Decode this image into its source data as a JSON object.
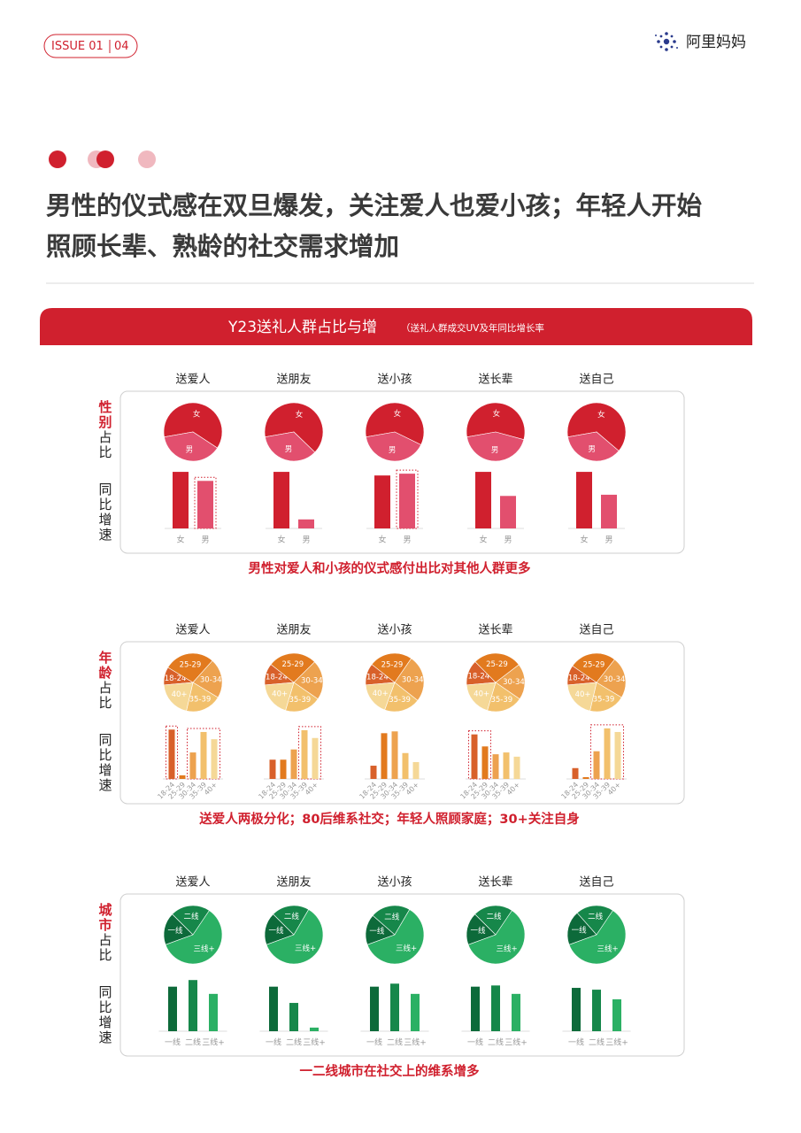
{
  "header": {
    "issue": "ISSUE 01",
    "page": "04",
    "brand": "阿里妈妈"
  },
  "headline": [
    "男性的仪式感在双旦爆发，关注爱人也爱小孩；年轻人开始",
    "照顾长辈、熟龄的社交需求增加"
  ],
  "banner": {
    "title": "Y23送礼人群占比与增",
    "note": "（送礼人群成交UV及年同比增长率"
  },
  "sections": [
    {
      "label": "性别",
      "share": "占比",
      "growth": "同比增速",
      "columns": [
        "送爱人",
        "送朋友",
        "送小孩",
        "送长辈",
        "送自己"
      ],
      "conclusion": "男性对爱人和小孩的仪式感付出比对其他人群更多"
    },
    {
      "label": "年龄",
      "share": "占比",
      "growth": "同比增速",
      "columns": [
        "送爱人",
        "送朋友",
        "送小孩",
        "送长辈",
        "送自己"
      ],
      "conclusion": "送爱人两极分化；80后维系社交；年轻人照顾家庭；30+关注自身"
    },
    {
      "label": "城市",
      "share": "占比",
      "growth": "同比增速",
      "columns": [
        "送爱人",
        "送朋友",
        "送小孩",
        "送长辈",
        "送自己"
      ],
      "conclusion": "一二线城市在社交上的维系增多"
    }
  ],
  "chart_data": [
    {
      "type": "pie",
      "categories": [
        "女",
        "男"
      ],
      "values": [
        62,
        38
      ],
      "colors": [
        "#d0202e",
        "#e24f6e"
      ]
    },
    {
      "type": "bar",
      "categories": [
        "女",
        "男"
      ],
      "values": [
        94,
        79
      ],
      "colors": [
        "#d0202e",
        "#e24f6e"
      ],
      "ylim": [
        0,
        100
      ],
      "highlight": [
        [
          1,
          1
        ]
      ]
    },
    {
      "type": "pie",
      "categories": [
        "女",
        "男"
      ],
      "values": [
        65,
        35
      ],
      "colors": [
        "#d0202e",
        "#e24f6e"
      ]
    },
    {
      "type": "bar",
      "categories": [
        "女",
        "男"
      ],
      "values": [
        94,
        15
      ],
      "colors": [
        "#d0202e",
        "#e24f6e"
      ],
      "ylim": [
        0,
        100
      ],
      "highlight": []
    },
    {
      "type": "pie",
      "categories": [
        "女",
        "男"
      ],
      "values": [
        60,
        40
      ],
      "colors": [
        "#d0202e",
        "#e24f6e"
      ]
    },
    {
      "type": "bar",
      "categories": [
        "女",
        "男"
      ],
      "values": [
        88,
        91
      ],
      "colors": [
        "#d0202e",
        "#e24f6e"
      ],
      "ylim": [
        0,
        100
      ],
      "highlight": [
        [
          1,
          1
        ]
      ]
    },
    {
      "type": "pie",
      "categories": [
        "女",
        "男"
      ],
      "values": [
        57,
        43
      ],
      "colors": [
        "#d0202e",
        "#e24f6e"
      ]
    },
    {
      "type": "bar",
      "categories": [
        "女",
        "男"
      ],
      "values": [
        94,
        54
      ],
      "colors": [
        "#d0202e",
        "#e24f6e"
      ],
      "ylim": [
        0,
        100
      ],
      "highlight": []
    },
    {
      "type": "pie",
      "categories": [
        "女",
        "男"
      ],
      "values": [
        64,
        36
      ],
      "colors": [
        "#d0202e",
        "#e24f6e"
      ]
    },
    {
      "type": "bar",
      "categories": [
        "女",
        "男"
      ],
      "values": [
        94,
        56
      ],
      "colors": [
        "#d0202e",
        "#e24f6e"
      ],
      "ylim": [
        0,
        100
      ],
      "highlight": []
    },
    {
      "type": "pie",
      "categories": [
        "18-24",
        "25-29",
        "30-34",
        "35-39",
        "40+"
      ],
      "values": [
        10,
        28,
        22,
        20,
        20
      ],
      "colors": [
        "#d8602a",
        "#e27a1e",
        "#eda24f",
        "#f2c06c",
        "#f5d897"
      ]
    },
    {
      "type": "bar",
      "categories": [
        "18-24",
        "25-29",
        "30-34",
        "35-39",
        "40+"
      ],
      "values": [
        82,
        6,
        44,
        78,
        66
      ],
      "colors": [
        "#d8602a",
        "#e27a1e",
        "#eda24f",
        "#f2c06c",
        "#f5d897"
      ],
      "ylim": [
        0,
        100
      ],
      "highlight": [
        [
          0,
          0
        ],
        [
          2,
          4
        ]
      ]
    },
    {
      "type": "pie",
      "categories": [
        "18-24",
        "25-29",
        "30-34",
        "35-39",
        "40+"
      ],
      "values": [
        12,
        27,
        22,
        20,
        19
      ],
      "colors": [
        "#d8602a",
        "#e27a1e",
        "#eda24f",
        "#f2c06c",
        "#f5d897"
      ]
    },
    {
      "type": "bar",
      "categories": [
        "18-24",
        "25-29",
        "30-34",
        "35-39",
        "40+"
      ],
      "values": [
        32,
        32,
        49,
        81,
        68
      ],
      "colors": [
        "#d8602a",
        "#e27a1e",
        "#eda24f",
        "#f2c06c",
        "#f5d897"
      ],
      "ylim": [
        0,
        100
      ],
      "highlight": [
        [
          3,
          4
        ]
      ]
    },
    {
      "type": "pie",
      "categories": [
        "18-24",
        "25-29",
        "30-34",
        "35-39",
        "40+"
      ],
      "values": [
        12,
        24,
        26,
        20,
        18
      ],
      "colors": [
        "#d8602a",
        "#e27a1e",
        "#eda24f",
        "#f2c06c",
        "#f5d897"
      ]
    },
    {
      "type": "bar",
      "categories": [
        "18-24",
        "25-29",
        "30-34",
        "35-39",
        "40+"
      ],
      "values": [
        22,
        76,
        79,
        43,
        28
      ],
      "colors": [
        "#d8602a",
        "#e27a1e",
        "#eda24f",
        "#f2c06c",
        "#f5d897"
      ],
      "ylim": [
        0,
        100
      ],
      "highlight": []
    },
    {
      "type": "pie",
      "categories": [
        "18-24",
        "25-29",
        "30-34",
        "35-39",
        "40+"
      ],
      "values": [
        14,
        27,
        20,
        20,
        19
      ],
      "colors": [
        "#d8602a",
        "#e27a1e",
        "#eda24f",
        "#f2c06c",
        "#f5d897"
      ]
    },
    {
      "type": "bar",
      "categories": [
        "18-24",
        "25-29",
        "30-34",
        "35-39",
        "40+"
      ],
      "values": [
        74,
        54,
        41,
        44,
        37
      ],
      "colors": [
        "#d8602a",
        "#e27a1e",
        "#eda24f",
        "#f2c06c",
        "#f5d897"
      ],
      "ylim": [
        0,
        100
      ],
      "highlight": [
        [
          0,
          1
        ]
      ]
    },
    {
      "type": "pie",
      "categories": [
        "18-24",
        "25-29",
        "30-34",
        "35-39",
        "40+"
      ],
      "values": [
        11,
        26,
        23,
        20,
        20
      ],
      "colors": [
        "#d8602a",
        "#e27a1e",
        "#eda24f",
        "#f2c06c",
        "#f5d897"
      ]
    },
    {
      "type": "bar",
      "categories": [
        "18-24",
        "25-29",
        "30-34",
        "35-39",
        "40+"
      ],
      "values": [
        18,
        3,
        46,
        84,
        78
      ],
      "colors": [
        "#d8602a",
        "#e27a1e",
        "#eda24f",
        "#f2c06c",
        "#f5d897"
      ],
      "ylim": [
        0,
        100
      ],
      "highlight": [
        [
          2,
          4
        ]
      ]
    },
    {
      "type": "pie",
      "categories": [
        "一线",
        "二线",
        "三线+"
      ],
      "values": [
        18,
        22,
        60
      ],
      "colors": [
        "#0d6a3a",
        "#16874a",
        "#2bb064"
      ]
    },
    {
      "type": "bar",
      "categories": [
        "一线",
        "二线",
        "三线+"
      ],
      "values": [
        74,
        85,
        62
      ],
      "colors": [
        "#0d6a3a",
        "#16874a",
        "#2bb064"
      ],
      "ylim": [
        0,
        100
      ],
      "highlight": []
    },
    {
      "type": "pie",
      "categories": [
        "一线",
        "二线",
        "三线+"
      ],
      "values": [
        18,
        21,
        61
      ],
      "colors": [
        "#0d6a3a",
        "#16874a",
        "#2bb064"
      ]
    },
    {
      "type": "bar",
      "categories": [
        "一线",
        "二线",
        "三线+"
      ],
      "values": [
        74,
        47,
        6
      ],
      "colors": [
        "#0d6a3a",
        "#16874a",
        "#2bb064"
      ],
      "ylim": [
        0,
        100
      ],
      "highlight": []
    },
    {
      "type": "pie",
      "categories": [
        "一线",
        "二线",
        "三线+"
      ],
      "values": [
        17,
        22,
        61
      ],
      "colors": [
        "#0d6a3a",
        "#16874a",
        "#2bb064"
      ]
    },
    {
      "type": "bar",
      "categories": [
        "一线",
        "二线",
        "三线+"
      ],
      "values": [
        74,
        79,
        62
      ],
      "colors": [
        "#0d6a3a",
        "#16874a",
        "#2bb064"
      ],
      "ylim": [
        0,
        100
      ],
      "highlight": []
    },
    {
      "type": "pie",
      "categories": [
        "一线",
        "二线",
        "三线+"
      ],
      "values": [
        18,
        22,
        60
      ],
      "colors": [
        "#0d6a3a",
        "#16874a",
        "#2bb064"
      ]
    },
    {
      "type": "bar",
      "categories": [
        "一线",
        "二线",
        "三线+"
      ],
      "values": [
        74,
        76,
        62
      ],
      "colors": [
        "#0d6a3a",
        "#16874a",
        "#2bb064"
      ],
      "ylim": [
        0,
        100
      ],
      "highlight": []
    },
    {
      "type": "pie",
      "categories": [
        "一线",
        "二线",
        "三线+"
      ],
      "values": [
        19,
        21,
        60
      ],
      "colors": [
        "#0d6a3a",
        "#16874a",
        "#2bb064"
      ]
    },
    {
      "type": "bar",
      "categories": [
        "一线",
        "二线",
        "三线+"
      ],
      "values": [
        72,
        69,
        53
      ],
      "colors": [
        "#0d6a3a",
        "#16874a",
        "#2bb064"
      ],
      "ylim": [
        0,
        100
      ],
      "highlight": []
    }
  ]
}
